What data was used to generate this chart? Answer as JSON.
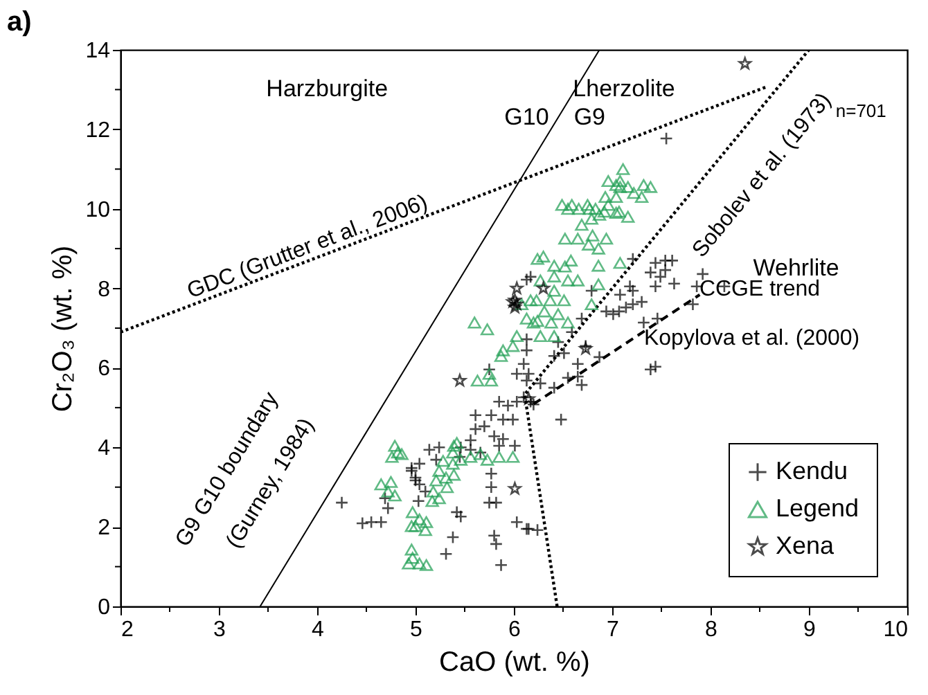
{
  "chart_data": {
    "type": "scatter",
    "xlabel": "CaO (wt. %)",
    "ylabel": "Cr₂O₃ (wt. %)",
    "xlim": [
      2,
      10
    ],
    "xticks": [
      2,
      {
        "value": 2.5,
        "label": null
      },
      3,
      {
        "value": 3.5,
        "label": null
      },
      4,
      {
        "value": 4.5,
        "label": null
      },
      5,
      {
        "value": 5.5,
        "label": null
      },
      6,
      {
        "value": 6.5,
        "label": null
      },
      7,
      {
        "value": 7.5,
        "label": null
      },
      8,
      {
        "value": 8.5,
        "label": null
      },
      9,
      {
        "value": 9.5,
        "label": null
      },
      10
    ],
    "ylim": [
      0,
      14
    ],
    "yticks": [
      0,
      {
        "value": 1,
        "label": null
      },
      2,
      {
        "value": 3,
        "label": null
      },
      4,
      {
        "value": 5,
        "label": null
      },
      6,
      {
        "value": 7,
        "label": null
      },
      8,
      {
        "value": 9,
        "label": null
      },
      10,
      {
        "value": 11,
        "label": null
      },
      12,
      {
        "value": 13,
        "label": null
      },
      14
    ],
    "grid": false,
    "legend": "bottom right",
    "series": [
      {
        "name": "Kendu",
        "color": "#000000",
        "marker": "cross",
        "x": [
          7.21,
          7.44,
          7.54,
          7.61,
          7.39,
          7.54,
          7.49,
          7.92,
          7.63,
          7.86,
          8.14,
          7.44,
          7.82,
          7.18,
          7.21,
          7.08,
          7.3,
          7.21,
          7.14,
          7.07,
          6.94,
          7.01,
          7.46,
          7.32,
          6.69,
          6.59,
          6.45,
          6.73,
          6.51,
          6.41,
          6.87,
          6.65,
          7.44,
          6.79,
          6.17,
          6.13,
          7.55,
          6.27,
          6.41,
          6.55,
          6.65,
          6.69,
          6.17,
          6.48,
          7.39,
          6.13,
          6.24,
          4.25,
          4.46,
          4.55,
          4.65,
          4.72,
          4.69,
          4.96,
          5.0,
          5.04,
          5.1,
          5.03,
          5.14,
          5.24,
          5.21,
          5.42,
          5.46,
          5.38,
          5.31,
          5.8,
          5.82,
          5.87,
          5.77,
          5.77,
          5.75,
          5.82,
          6.03,
          6.15,
          5.45,
          5.46,
          5.56,
          5.66,
          5.61,
          5.7,
          5.8,
          5.89,
          5.56,
          5.85,
          5.61,
          5.77,
          5.89,
          5.99,
          5.85,
          5.94,
          6.03,
          6.1,
          6.13,
          6.15,
          6.03,
          6.2,
          6.01,
          5.0,
          5.04,
          4.96,
          6.13,
          6.13,
          6.1,
          5.75
        ],
        "values": [
          8.74,
          8.64,
          8.7,
          8.7,
          8.4,
          8.46,
          8.29,
          8.36,
          8.12,
          8.05,
          8.05,
          8.05,
          7.6,
          8.05,
          7.94,
          7.84,
          7.66,
          7.6,
          7.52,
          7.42,
          7.42,
          7.35,
          7.24,
          7.14,
          7.24,
          6.9,
          6.65,
          6.55,
          6.37,
          6.3,
          6.27,
          6.1,
          6.03,
          7.94,
          8.29,
          6.44,
          11.77,
          5.61,
          5.5,
          5.75,
          5.78,
          5.57,
          5.15,
          4.7,
          5.96,
          1.95,
          1.92,
          2.61,
          2.09,
          2.12,
          2.12,
          2.47,
          2.72,
          3.41,
          3.24,
          3.07,
          2.89,
          2.65,
          3.94,
          4.0,
          3.69,
          2.37,
          2.26,
          1.74,
          1.32,
          1.78,
          1.57,
          1.04,
          3.34,
          3.0,
          2.61,
          2.61,
          2.12,
          1.95,
          3.76,
          4.0,
          3.94,
          3.87,
          4.46,
          4.53,
          4.28,
          4.21,
          4.18,
          4.04,
          4.81,
          4.81,
          4.7,
          4.7,
          5.15,
          5.05,
          5.15,
          5.26,
          5.68,
          5.85,
          5.85,
          5.08,
          4.04,
          3.17,
          3.59,
          3.48,
          8.22,
          6.72,
          6.1,
          5.96
        ]
      },
      {
        "name": "Legend",
        "color": "#1e9e52",
        "marker": "triangle",
        "x": [
          7.11,
          6.96,
          7.08,
          7.32,
          7.22,
          7.08,
          6.93,
          6.96,
          6.49,
          6.59,
          6.75,
          6.77,
          7.07,
          6.92,
          7.04,
          7.16,
          7.39,
          7.3,
          7.04,
          7.04,
          7.16,
          6.55,
          6.66,
          6.83,
          6.87,
          6.79,
          6.69,
          6.52,
          6.65,
          6.8,
          6.94,
          6.76,
          6.86,
          6.3,
          6.58,
          6.52,
          6.41,
          6.86,
          7.08,
          6.41,
          6.27,
          6.55,
          6.65,
          6.86,
          6.41,
          6.37,
          6.51,
          6.31,
          6.45,
          6.24,
          6.38,
          6.55,
          6.27,
          6.41,
          6.79,
          6.23,
          5.6,
          5.73,
          6.13,
          6.2,
          5.89,
          5.99,
          5.87,
          6.03,
          6.24,
          6.08,
          6.17,
          5.63,
          5.75,
          5.77,
          4.79,
          4.82,
          4.76,
          4.86,
          4.65,
          4.75,
          4.72,
          4.79,
          5.42,
          5.38,
          5.28,
          5.24,
          5.38,
          5.46,
          5.21,
          5.31,
          5.39,
          5.32,
          5.18,
          5.17,
          5.24,
          4.97,
          5.04,
          5.0,
          5.1,
          4.96,
          5.11,
          4.96,
          4.97,
          4.93,
          5.04,
          5.11,
          5.56,
          5.66,
          5.73,
          5.85,
          5.99,
          5.39
        ],
        "values": [
          11.0,
          10.7,
          10.7,
          10.6,
          10.4,
          10.55,
          10.3,
          10.1,
          10.1,
          10.1,
          10.1,
          10.0,
          9.93,
          9.93,
          10.6,
          10.55,
          10.55,
          10.3,
          10.3,
          9.9,
          9.8,
          10.0,
          10.0,
          10.0,
          9.85,
          9.75,
          9.6,
          9.25,
          9.25,
          9.33,
          9.25,
          9.1,
          9.0,
          8.8,
          8.7,
          8.55,
          8.57,
          8.57,
          8.64,
          8.3,
          8.2,
          8.2,
          8.2,
          8.1,
          7.94,
          7.7,
          7.7,
          7.42,
          7.35,
          7.18,
          7.14,
          7.14,
          6.8,
          6.8,
          7.6,
          7.7,
          7.14,
          6.97,
          7.24,
          7.14,
          6.44,
          6.55,
          6.3,
          6.8,
          8.74,
          7.6,
          7.7,
          5.68,
          5.85,
          5.68,
          4.04,
          3.87,
          3.76,
          3.83,
          3.07,
          3.13,
          2.89,
          2.79,
          4.11,
          3.87,
          3.66,
          3.41,
          3.59,
          3.69,
          3.17,
          3.24,
          3.31,
          3.0,
          2.89,
          2.65,
          2.72,
          2.37,
          2.19,
          2.02,
          1.92,
          2.02,
          2.12,
          1.43,
          1.22,
          1.08,
          1.08,
          1.04,
          3.76,
          3.83,
          3.69,
          3.76,
          3.76,
          4.04
        ]
      },
      {
        "name": "Xena",
        "color": "#000000",
        "marker": "star",
        "x": [
          6.03,
          6.01,
          6.01,
          6.03,
          5.99,
          6.3,
          5.45,
          6.01,
          6.15,
          8.35,
          6.73
        ],
        "values": [
          8.0,
          7.7,
          7.52,
          7.6,
          7.66,
          8.0,
          5.68,
          2.96,
          5.22,
          13.65,
          6.48
        ]
      },
      {
        "type": "line",
        "color": "#000000",
        "line_style": "dotted",
        "x": [
          2,
          8.56
        ],
        "values": [
          6.9,
          13.06
        ]
      },
      {
        "type": "line",
        "color": "#000000",
        "line_style": "solid",
        "x": [
          3.42,
          6.87
        ],
        "values": [
          0,
          14
        ]
      },
      {
        "type": "line",
        "color": "#000000",
        "line_style": "dotted",
        "x": [
          6.44,
          6.11,
          9.0
        ],
        "values": [
          0,
          5.33,
          14
        ]
      },
      {
        "type": "line",
        "color": "#000000",
        "line_style": "dashed",
        "x": [
          6.2,
          7.89
        ],
        "values": [
          5.09,
          7.84
        ]
      }
    ],
    "annotations": [
      "Harzburgite",
      "Lherzolite",
      "G10",
      "G9",
      "n=701",
      "Wehrlite",
      "GDC (Grutter et al., 2006)",
      "Sobolev et al. (1973)",
      "G9 G10 boundary",
      "(Gurney, 1984)",
      "CCGE trend",
      "Kopylova et al. (2000)",
      "a)"
    ]
  }
}
